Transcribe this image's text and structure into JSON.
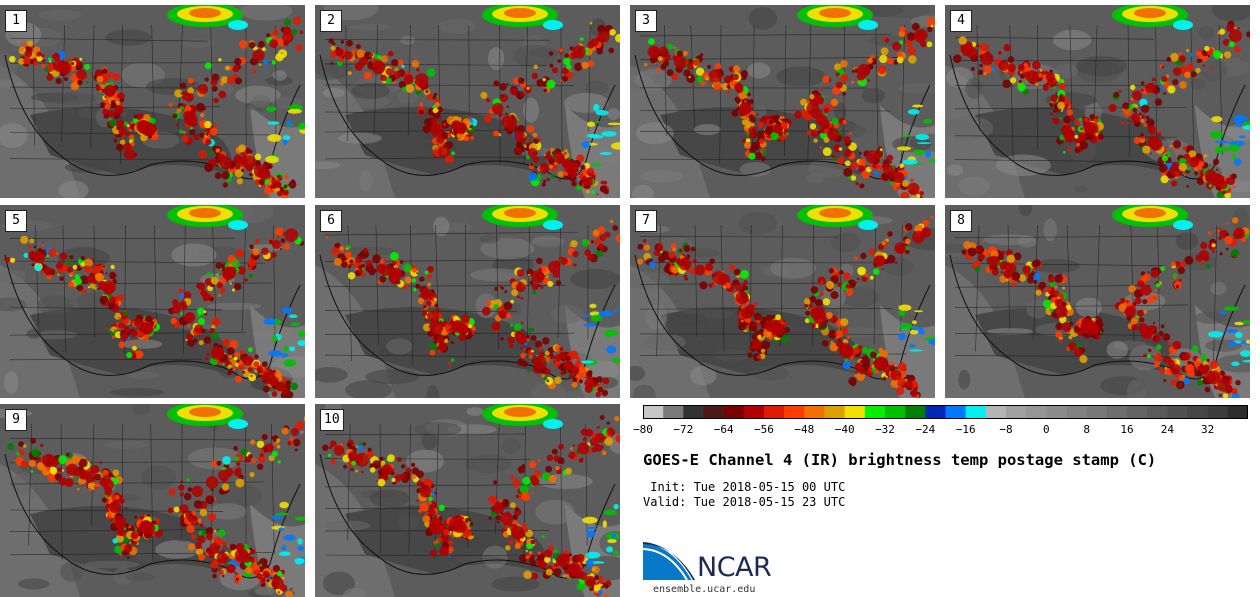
{
  "panels": [
    {
      "label": "1"
    },
    {
      "label": "2"
    },
    {
      "label": "3"
    },
    {
      "label": "4"
    },
    {
      "label": "5"
    },
    {
      "label": "6"
    },
    {
      "label": "7"
    },
    {
      "label": "8"
    },
    {
      "label": "9"
    },
    {
      "label": "10"
    }
  ],
  "colorbar": {
    "ticks": [
      "−80",
      "−72",
      "−64",
      "−56",
      "−48",
      "−40",
      "−32",
      "−24",
      "−16",
      "−8",
      "0",
      "8",
      "16",
      "24",
      "32"
    ],
    "colors": [
      "#c6c6c6",
      "#7a7a7a",
      "#323232",
      "#4a1a1a",
      "#7a0000",
      "#b00000",
      "#e01a00",
      "#ff3c00",
      "#f07000",
      "#dca000",
      "#f0e000",
      "#00f000",
      "#00c000",
      "#008000",
      "#0028b4",
      "#0078ff",
      "#00f0f0",
      "#b4b4b4",
      "#a0a0a0",
      "#969696",
      "#8c8c8c",
      "#828282",
      "#787878",
      "#6e6e6e",
      "#646464",
      "#5a5a5a",
      "#505050",
      "#464646",
      "#3c3c3c",
      "#2d2d2d"
    ]
  },
  "title": "GOES-E Channel 4 (IR) brightness temp postage stamp (C)",
  "init_text": " Init: Tue 2018-05-15 00 UTC",
  "valid_text": "Valid: Tue 2018-05-15 23 UTC",
  "logo": {
    "text": "NCAR",
    "site": "ensemble.ucar.edu",
    "brand_color": "#0a78c8"
  }
}
